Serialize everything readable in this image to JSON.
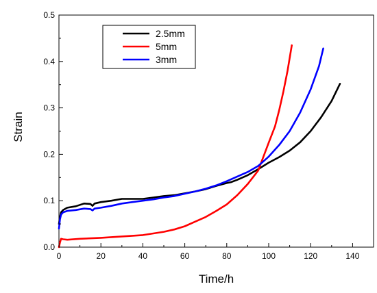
{
  "chart_data": {
    "type": "line",
    "xlabel": "Time/h",
    "ylabel": "Strain",
    "xlim": [
      0,
      150
    ],
    "ylim": [
      0,
      0.5
    ],
    "xticks": [
      "0",
      "20",
      "40",
      "60",
      "80",
      "100",
      "120",
      "140"
    ],
    "yticks": [
      "0.0",
      "0.1",
      "0.2",
      "0.3",
      "0.4",
      "0.5"
    ],
    "grid": false,
    "legend_position": "top-left",
    "series": [
      {
        "name": "2.5mm",
        "color": "#000000",
        "x": [
          0,
          0.5,
          1,
          2,
          4,
          8,
          12,
          15,
          16,
          17,
          20,
          25,
          30,
          35,
          40,
          45,
          50,
          55,
          60,
          65,
          70,
          75,
          80,
          82,
          85,
          90,
          95,
          100,
          105,
          110,
          115,
          120,
          125,
          130,
          134
        ],
        "y": [
          0.05,
          0.065,
          0.075,
          0.08,
          0.085,
          0.088,
          0.094,
          0.093,
          0.089,
          0.094,
          0.097,
          0.1,
          0.104,
          0.104,
          0.104,
          0.107,
          0.11,
          0.112,
          0.116,
          0.12,
          0.125,
          0.132,
          0.138,
          0.14,
          0.145,
          0.155,
          0.168,
          0.182,
          0.194,
          0.208,
          0.226,
          0.25,
          0.28,
          0.315,
          0.352
        ]
      },
      {
        "name": "5mm",
        "color": "#ff0000",
        "x": [
          0,
          0.5,
          1,
          2,
          4,
          10,
          20,
          30,
          40,
          50,
          55,
          60,
          65,
          70,
          75,
          80,
          85,
          90,
          95,
          100,
          103,
          105,
          107,
          109,
          111
        ],
        "y": [
          0.0,
          0.01,
          0.018,
          0.017,
          0.016,
          0.018,
          0.02,
          0.023,
          0.026,
          0.033,
          0.038,
          0.045,
          0.055,
          0.065,
          0.078,
          0.092,
          0.112,
          0.136,
          0.165,
          0.225,
          0.26,
          0.295,
          0.335,
          0.38,
          0.435
        ]
      },
      {
        "name": "3mm",
        "color": "#0000ff",
        "x": [
          0,
          0.5,
          1,
          2,
          4,
          8,
          12,
          15,
          16,
          17,
          20,
          25,
          30,
          35,
          40,
          45,
          50,
          55,
          60,
          65,
          70,
          75,
          80,
          85,
          90,
          95,
          100,
          105,
          110,
          115,
          120,
          124,
          126
        ],
        "y": [
          0.04,
          0.06,
          0.07,
          0.075,
          0.078,
          0.08,
          0.083,
          0.082,
          0.079,
          0.083,
          0.085,
          0.089,
          0.094,
          0.097,
          0.1,
          0.103,
          0.107,
          0.11,
          0.115,
          0.12,
          0.126,
          0.133,
          0.142,
          0.152,
          0.162,
          0.175,
          0.195,
          0.22,
          0.25,
          0.29,
          0.34,
          0.39,
          0.428
        ]
      }
    ]
  }
}
